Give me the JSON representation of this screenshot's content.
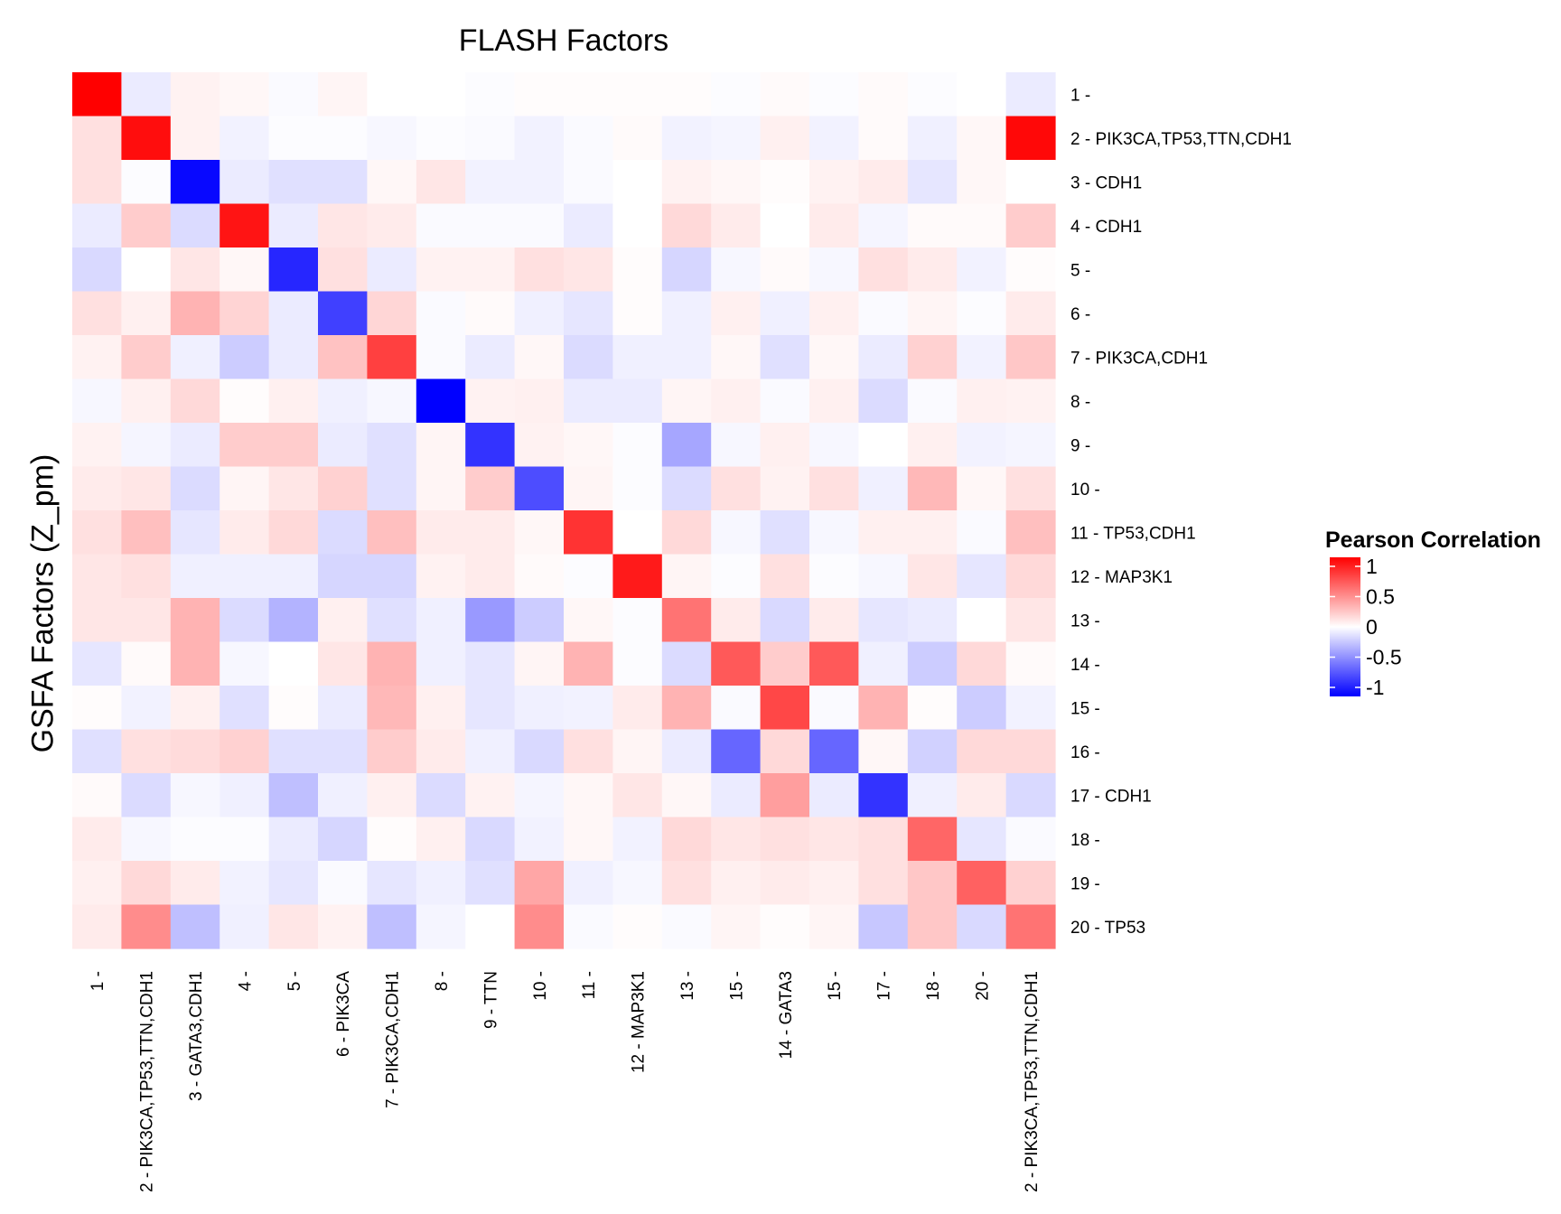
{
  "chart_data": {
    "type": "heatmap",
    "title": "FLASH Factors",
    "xlabel": "",
    "ylabel": "GSFA Factors (Z_pm)",
    "x_categories": [
      "1 -",
      "2 - PIK3CA,TP53,TTN,CDH1",
      "3 - GATA3,CDH1",
      "4 -",
      "5 -",
      "6 - PIK3CA",
      "7 - PIK3CA,CDH1",
      "8 -",
      "9 - TTN",
      "10 -",
      "11 -",
      "12 - MAP3K1",
      "13 -",
      "15 -",
      "14 - GATA3",
      "15 -",
      "17 -",
      "18 -",
      "20 -",
      "2 - PIK3CA,TP53,TTN,CDH1"
    ],
    "y_categories": [
      "1 -",
      "2 - PIK3CA,TP53,TTN,CDH1",
      "3 - CDH1",
      "4 - CDH1",
      "5 -",
      "6 -",
      "7 - PIK3CA,CDH1",
      "8 -",
      "9 -",
      "10 -",
      "11 - TP53,CDH1",
      "12 - MAP3K1",
      "13 -",
      "14 -",
      "15 -",
      "16 -",
      "17 - CDH1",
      "18 -",
      "19 -",
      "20 - TP53"
    ],
    "values": [
      [
        1.0,
        -0.08,
        0.05,
        0.03,
        -0.02,
        0.04,
        0.0,
        0.0,
        -0.01,
        0.01,
        0.01,
        0.01,
        0.01,
        -0.01,
        0.02,
        -0.01,
        0.02,
        -0.01,
        0.0,
        -0.08
      ],
      [
        0.12,
        0.95,
        0.05,
        -0.05,
        -0.01,
        -0.01,
        -0.03,
        -0.01,
        -0.02,
        -0.05,
        -0.02,
        0.02,
        -0.05,
        -0.04,
        0.06,
        -0.05,
        0.02,
        -0.06,
        0.03,
        0.97
      ],
      [
        0.12,
        -0.01,
        -0.97,
        -0.08,
        -0.12,
        -0.12,
        0.03,
        0.1,
        -0.05,
        -0.05,
        -0.02,
        0.0,
        0.05,
        0.03,
        0.01,
        0.05,
        0.08,
        -0.1,
        0.03,
        0.0
      ],
      [
        -0.08,
        0.2,
        -0.14,
        0.92,
        -0.08,
        0.1,
        0.08,
        -0.02,
        -0.02,
        -0.02,
        -0.08,
        0.0,
        0.15,
        0.08,
        0.0,
        0.08,
        -0.04,
        0.02,
        0.02,
        0.2
      ],
      [
        -0.15,
        0.0,
        0.1,
        0.03,
        -0.85,
        0.12,
        -0.08,
        0.05,
        0.05,
        0.12,
        0.1,
        0.01,
        -0.16,
        -0.03,
        0.02,
        -0.03,
        0.12,
        0.08,
        -0.05,
        0.01
      ],
      [
        0.12,
        0.06,
        0.3,
        0.17,
        -0.08,
        -0.75,
        0.16,
        -0.02,
        0.02,
        -0.06,
        -0.1,
        0.01,
        -0.06,
        0.06,
        -0.06,
        0.06,
        -0.02,
        0.04,
        -0.01,
        0.08
      ],
      [
        0.05,
        0.2,
        -0.06,
        -0.2,
        -0.08,
        0.24,
        0.75,
        -0.02,
        -0.08,
        0.03,
        -0.14,
        -0.06,
        -0.06,
        0.03,
        -0.12,
        0.03,
        -0.08,
        0.18,
        -0.05,
        0.22
      ],
      [
        -0.03,
        0.06,
        0.15,
        0.01,
        0.06,
        -0.06,
        -0.03,
        -1.0,
        0.05,
        0.06,
        -0.08,
        -0.08,
        0.04,
        0.06,
        -0.02,
        0.06,
        -0.14,
        -0.02,
        0.06,
        0.05
      ],
      [
        0.05,
        -0.04,
        -0.08,
        0.2,
        0.2,
        -0.08,
        -0.12,
        0.04,
        -0.8,
        0.05,
        0.03,
        -0.01,
        -0.35,
        -0.03,
        0.06,
        -0.03,
        0.0,
        0.06,
        -0.05,
        -0.04
      ],
      [
        0.08,
        0.1,
        -0.14,
        0.04,
        0.1,
        0.18,
        -0.12,
        0.04,
        0.2,
        -0.7,
        0.04,
        -0.01,
        -0.14,
        0.12,
        0.05,
        0.12,
        -0.06,
        0.28,
        0.03,
        0.12
      ],
      [
        0.12,
        0.25,
        -0.1,
        0.08,
        0.15,
        -0.14,
        0.25,
        0.08,
        0.08,
        0.03,
        0.8,
        0.0,
        0.15,
        -0.03,
        -0.12,
        -0.03,
        0.06,
        0.06,
        -0.02,
        0.25
      ],
      [
        0.1,
        0.12,
        -0.06,
        -0.06,
        -0.06,
        -0.16,
        -0.16,
        0.05,
        0.08,
        0.02,
        -0.01,
        0.9,
        0.04,
        -0.01,
        0.12,
        -0.01,
        -0.03,
        0.1,
        -0.1,
        0.15
      ],
      [
        0.1,
        0.1,
        0.3,
        -0.14,
        -0.3,
        0.06,
        -0.12,
        -0.06,
        -0.4,
        -0.2,
        0.03,
        -0.01,
        0.55,
        0.08,
        -0.15,
        0.08,
        -0.1,
        -0.08,
        0.0,
        0.1
      ],
      [
        -0.1,
        0.02,
        0.3,
        -0.03,
        0.0,
        0.1,
        0.3,
        -0.06,
        -0.1,
        0.04,
        0.3,
        -0.01,
        -0.14,
        0.65,
        0.2,
        0.65,
        -0.06,
        -0.2,
        0.15,
        0.02
      ],
      [
        0.01,
        -0.05,
        0.06,
        -0.12,
        0.01,
        -0.08,
        0.28,
        0.06,
        -0.1,
        -0.06,
        -0.05,
        0.08,
        0.3,
        -0.02,
        0.72,
        -0.02,
        0.3,
        0.01,
        -0.2,
        -0.05
      ],
      [
        -0.12,
        0.12,
        0.14,
        0.18,
        -0.12,
        -0.12,
        0.2,
        0.08,
        -0.06,
        -0.15,
        0.12,
        0.04,
        -0.08,
        -0.6,
        0.15,
        -0.6,
        0.03,
        -0.18,
        0.15,
        0.15
      ],
      [
        0.02,
        -0.14,
        -0.03,
        -0.06,
        -0.25,
        -0.06,
        0.06,
        -0.14,
        0.05,
        -0.04,
        0.03,
        0.1,
        0.03,
        -0.08,
        0.38,
        -0.08,
        -0.8,
        -0.06,
        0.08,
        -0.15
      ],
      [
        0.08,
        -0.03,
        -0.01,
        -0.01,
        -0.08,
        -0.16,
        0.01,
        0.06,
        -0.15,
        -0.05,
        0.03,
        -0.05,
        0.15,
        0.1,
        0.12,
        0.1,
        0.12,
        0.6,
        -0.1,
        -0.02
      ],
      [
        0.06,
        0.15,
        0.08,
        -0.05,
        -0.1,
        -0.02,
        -0.1,
        -0.06,
        -0.12,
        0.35,
        -0.06,
        -0.03,
        0.12,
        0.06,
        0.08,
        0.06,
        0.12,
        0.22,
        0.62,
        0.18
      ],
      [
        0.08,
        0.45,
        -0.25,
        -0.06,
        0.1,
        0.05,
        -0.25,
        -0.04,
        0.0,
        0.45,
        -0.02,
        0.01,
        -0.02,
        0.04,
        0.01,
        0.04,
        -0.22,
        0.22,
        -0.15,
        0.55
      ]
    ],
    "color_scale": {
      "low": "#0000ff",
      "mid": "#ffffff",
      "high": "#ff0000",
      "range": [
        -1,
        1
      ]
    },
    "legend": {
      "title": "Pearson Correlation",
      "ticks": [
        {
          "value": 1,
          "label": "1"
        },
        {
          "value": 0.5,
          "label": "0.5"
        },
        {
          "value": 0,
          "label": "0"
        },
        {
          "value": -0.5,
          "label": "-0.5"
        },
        {
          "value": -1,
          "label": "-1"
        }
      ],
      "position": "right"
    },
    "grid": false
  }
}
